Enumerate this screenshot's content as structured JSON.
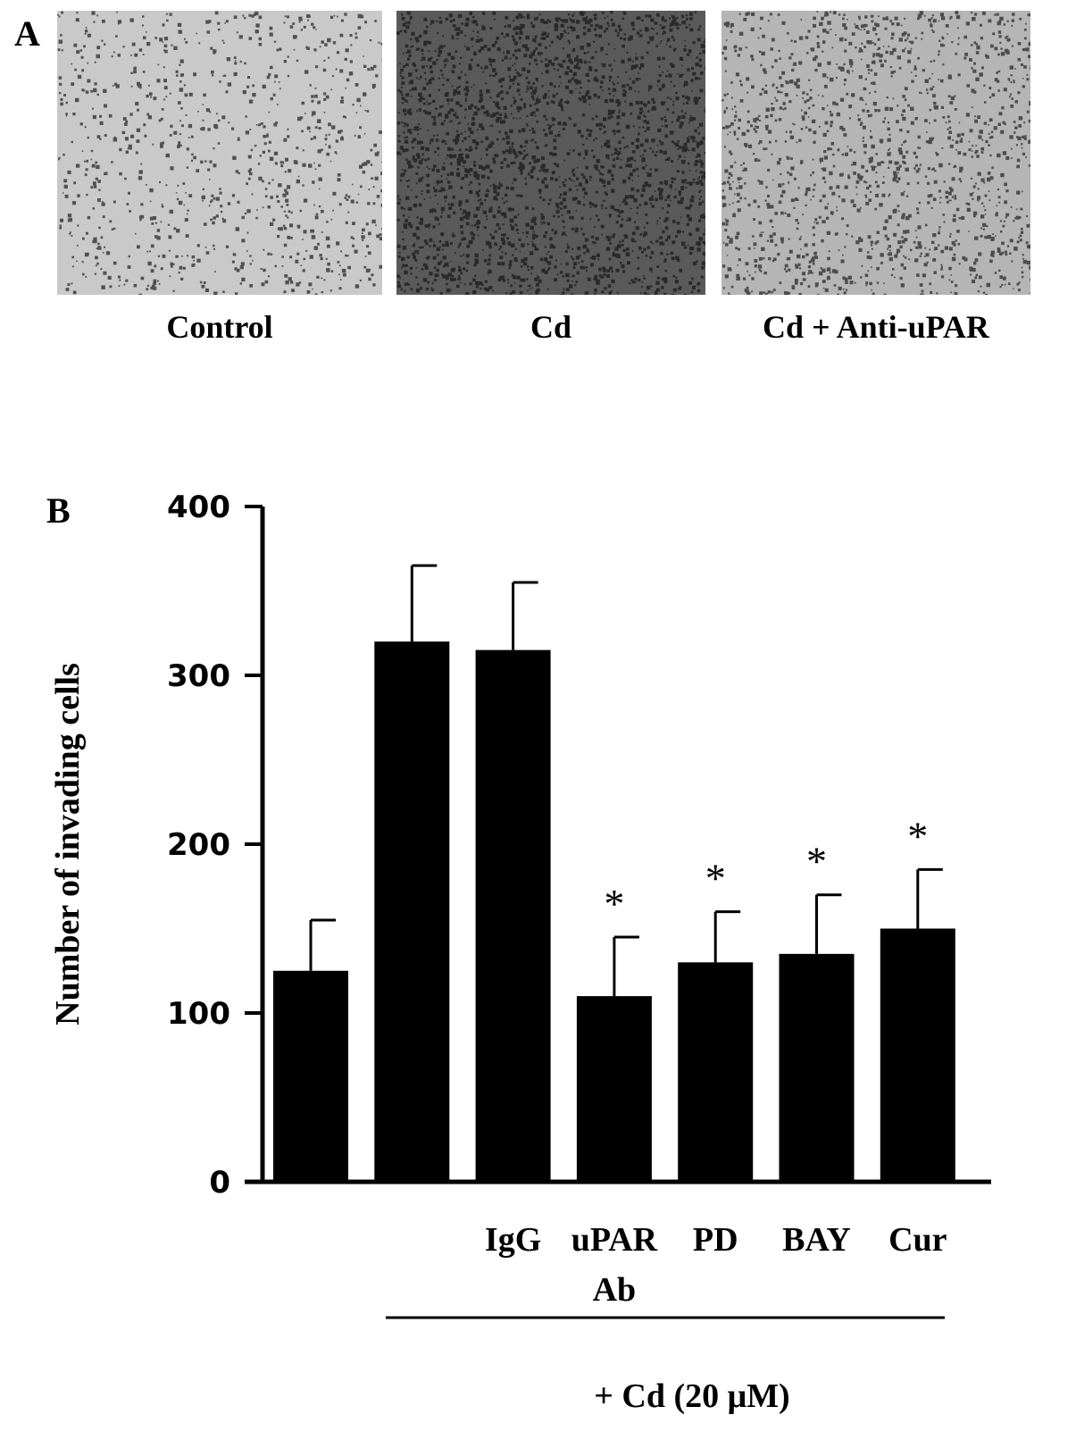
{
  "panel_a": {
    "letter": "A",
    "images": [
      {
        "label": "Control",
        "density": 0.35,
        "tone": "#c9c9c9"
      },
      {
        "label": "Cd",
        "density": 0.9,
        "tone": "#5a5a5a"
      },
      {
        "label": "Cd + Anti-uPAR",
        "density": 0.55,
        "tone": "#b5b5b5"
      }
    ]
  },
  "panel_b": {
    "letter": "B"
  },
  "chart_data": {
    "type": "bar",
    "categories": [
      "",
      "",
      "IgG",
      "uPAR\nAb",
      "PD",
      "BAY",
      "Cur"
    ],
    "category_lines": [
      [],
      [],
      [
        "IgG"
      ],
      [
        "uPAR",
        "Ab"
      ],
      [
        "PD"
      ],
      [
        "BAY"
      ],
      [
        "Cur"
      ]
    ],
    "values": [
      125,
      320,
      315,
      110,
      130,
      135,
      150
    ],
    "errors": [
      30,
      45,
      40,
      35,
      30,
      35,
      35
    ],
    "significance": [
      "",
      "",
      "",
      "*",
      "*",
      "*",
      "*"
    ],
    "ylabel": "Number of invading cells",
    "ylim": [
      0,
      400
    ],
    "yticks": [
      0,
      100,
      200,
      300,
      400
    ],
    "group_label": "+ Cd (20 μM)",
    "bar_color": "#000000"
  }
}
